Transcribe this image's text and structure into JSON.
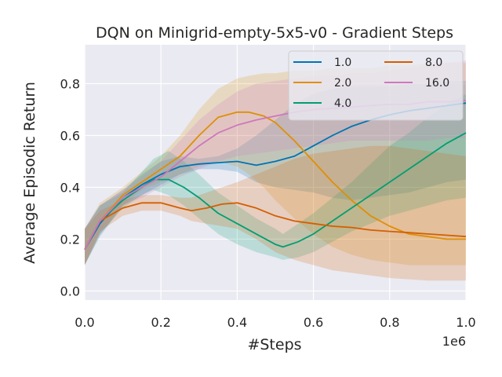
{
  "chart_data": {
    "type": "line",
    "title": "DQN on Minigrid-empty-5x5-v0 - Gradient Steps",
    "xlabel": "#Steps",
    "ylabel": "Average Episodic Return",
    "x_scale_label": "1e6",
    "xlim": [
      0,
      1000000
    ],
    "ylim": [
      -0.035,
      0.95
    ],
    "x_ticks": [
      0,
      200000,
      400000,
      600000,
      800000,
      1000000
    ],
    "x_tick_labels": [
      "0.0",
      "0.2",
      "0.4",
      "0.6",
      "0.8",
      "1.0"
    ],
    "y_ticks": [
      0.0,
      0.2,
      0.4,
      0.6,
      0.8
    ],
    "y_tick_labels": [
      "0.0",
      "0.2",
      "0.4",
      "0.6",
      "0.8"
    ],
    "grid": true,
    "legend_position": "top-right",
    "legend_columns": 2,
    "series": [
      {
        "name": "1.0",
        "color": "#0173b2",
        "x": [
          0,
          40000,
          100000,
          150000,
          200000,
          250000,
          300000,
          350000,
          400000,
          450000,
          500000,
          550000,
          600000,
          650000,
          700000,
          750000,
          800000,
          850000,
          900000,
          950000,
          1000000
        ],
        "y": [
          0.16,
          0.26,
          0.36,
          0.41,
          0.45,
          0.48,
          0.49,
          0.495,
          0.5,
          0.485,
          0.5,
          0.52,
          0.56,
          0.6,
          0.635,
          0.66,
          0.68,
          0.695,
          0.705,
          0.715,
          0.725
        ],
        "upper": [
          0.24,
          0.33,
          0.39,
          0.45,
          0.5,
          0.52,
          0.51,
          0.52,
          0.55,
          0.6,
          0.66,
          0.72,
          0.76,
          0.78,
          0.79,
          0.79,
          0.79,
          0.8,
          0.8,
          0.81,
          0.81
        ],
        "lower": [
          0.1,
          0.21,
          0.33,
          0.37,
          0.41,
          0.45,
          0.47,
          0.47,
          0.46,
          0.42,
          0.4,
          0.39,
          0.38,
          0.36,
          0.35,
          0.36,
          0.37,
          0.38,
          0.4,
          0.42,
          0.43
        ]
      },
      {
        "name": "2.0",
        "color": "#de8f05",
        "x": [
          0,
          40000,
          100000,
          150000,
          200000,
          250000,
          300000,
          350000,
          400000,
          430000,
          470000,
          500000,
          550000,
          600000,
          650000,
          700000,
          750000,
          800000,
          850000,
          900000,
          950000,
          1000000
        ],
        "y": [
          0.16,
          0.27,
          0.37,
          0.42,
          0.47,
          0.52,
          0.6,
          0.67,
          0.69,
          0.69,
          0.675,
          0.65,
          0.58,
          0.5,
          0.42,
          0.35,
          0.29,
          0.25,
          0.22,
          0.21,
          0.2,
          0.2
        ],
        "upper": [
          0.24,
          0.34,
          0.4,
          0.46,
          0.52,
          0.6,
          0.7,
          0.78,
          0.82,
          0.83,
          0.84,
          0.84,
          0.85,
          0.85,
          0.86,
          0.86,
          0.86,
          0.87,
          0.87,
          0.88,
          0.88,
          0.88
        ],
        "lower": [
          0.1,
          0.22,
          0.33,
          0.39,
          0.42,
          0.45,
          0.48,
          0.5,
          0.48,
          0.45,
          0.4,
          0.35,
          0.28,
          0.22,
          0.17,
          0.14,
          0.12,
          0.11,
          0.1,
          0.1,
          0.1,
          0.1
        ]
      },
      {
        "name": "4.0",
        "color": "#029e73",
        "x": [
          0,
          40000,
          100000,
          150000,
          180000,
          220000,
          260000,
          300000,
          350000,
          400000,
          450000,
          500000,
          520000,
          560000,
          600000,
          650000,
          700000,
          750000,
          800000,
          850000,
          900000,
          950000,
          1000000
        ],
        "y": [
          0.16,
          0.27,
          0.35,
          0.4,
          0.43,
          0.43,
          0.4,
          0.36,
          0.3,
          0.26,
          0.22,
          0.18,
          0.17,
          0.19,
          0.22,
          0.27,
          0.32,
          0.37,
          0.42,
          0.47,
          0.52,
          0.57,
          0.61
        ],
        "upper": [
          0.24,
          0.33,
          0.38,
          0.46,
          0.51,
          0.54,
          0.5,
          0.45,
          0.38,
          0.33,
          0.28,
          0.24,
          0.22,
          0.26,
          0.3,
          0.36,
          0.42,
          0.49,
          0.56,
          0.61,
          0.67,
          0.72,
          0.76
        ],
        "lower": [
          0.1,
          0.22,
          0.32,
          0.37,
          0.39,
          0.37,
          0.33,
          0.28,
          0.22,
          0.18,
          0.15,
          0.13,
          0.12,
          0.13,
          0.15,
          0.19,
          0.23,
          0.26,
          0.29,
          0.31,
          0.33,
          0.35,
          0.36
        ]
      },
      {
        "name": "8.0",
        "color": "#d55e00",
        "x": [
          0,
          40000,
          100000,
          150000,
          200000,
          250000,
          280000,
          320000,
          360000,
          400000,
          450000,
          500000,
          550000,
          600000,
          650000,
          700000,
          750000,
          800000,
          850000,
          900000,
          950000,
          1000000
        ],
        "y": [
          0.16,
          0.27,
          0.32,
          0.34,
          0.34,
          0.32,
          0.31,
          0.32,
          0.335,
          0.34,
          0.32,
          0.29,
          0.27,
          0.26,
          0.25,
          0.245,
          0.235,
          0.23,
          0.225,
          0.22,
          0.215,
          0.21
        ],
        "upper": [
          0.24,
          0.31,
          0.35,
          0.37,
          0.37,
          0.36,
          0.36,
          0.38,
          0.4,
          0.42,
          0.45,
          0.48,
          0.51,
          0.53,
          0.54,
          0.55,
          0.56,
          0.56,
          0.55,
          0.54,
          0.53,
          0.52
        ],
        "lower": [
          0.1,
          0.23,
          0.29,
          0.31,
          0.31,
          0.29,
          0.27,
          0.26,
          0.25,
          0.24,
          0.2,
          0.15,
          0.12,
          0.1,
          0.08,
          0.07,
          0.06,
          0.05,
          0.045,
          0.04,
          0.04,
          0.04
        ]
      },
      {
        "name": "16.0",
        "color": "#cc78bc",
        "x": [
          0,
          40000,
          100000,
          150000,
          200000,
          250000,
          300000,
          350000,
          400000,
          450000,
          500000,
          550000,
          600000,
          650000,
          700000,
          750000,
          800000,
          850000,
          900000,
          950000,
          1000000
        ],
        "y": [
          0.16,
          0.27,
          0.36,
          0.4,
          0.44,
          0.5,
          0.56,
          0.61,
          0.64,
          0.66,
          0.675,
          0.69,
          0.7,
          0.705,
          0.71,
          0.715,
          0.72,
          0.72,
          0.73,
          0.73,
          0.735
        ],
        "upper": [
          0.24,
          0.33,
          0.39,
          0.44,
          0.5,
          0.58,
          0.66,
          0.72,
          0.77,
          0.8,
          0.81,
          0.82,
          0.83,
          0.83,
          0.84,
          0.84,
          0.85,
          0.86,
          0.87,
          0.88,
          0.89
        ],
        "lower": [
          0.1,
          0.22,
          0.33,
          0.36,
          0.4,
          0.44,
          0.47,
          0.5,
          0.52,
          0.53,
          0.54,
          0.55,
          0.56,
          0.57,
          0.58,
          0.58,
          0.58,
          0.58,
          0.58,
          0.59,
          0.59
        ]
      }
    ]
  }
}
